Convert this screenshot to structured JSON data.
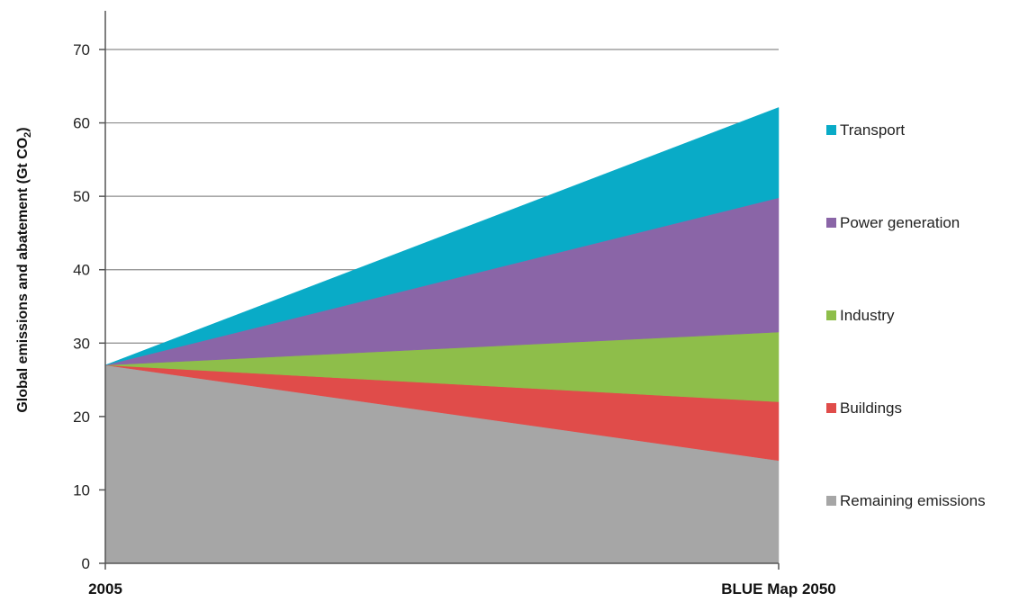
{
  "chart_data": {
    "type": "area",
    "stacked": true,
    "categories": [
      "2005",
      "BLUE Map 2050"
    ],
    "ylabel": "Global emissions and abatement (Gt CO",
    "ylabel_subscript": "2",
    "ylabel_suffix": ")",
    "ylim": [
      0,
      70
    ],
    "yticks": [
      "0",
      "10",
      "20",
      "30",
      "40",
      "50",
      "60",
      "70"
    ],
    "grid": true,
    "legend_position": "right",
    "series": [
      {
        "name": "Remaining emissions",
        "color": "#a6a6a6",
        "values": [
          27,
          14
        ]
      },
      {
        "name": "Buildings",
        "color": "#e04c4a",
        "values": [
          0,
          8
        ]
      },
      {
        "name": "Industry",
        "color": "#8ebe4a",
        "values": [
          0,
          9.5
        ]
      },
      {
        "name": "Power generation",
        "color": "#8a65a7",
        "values": [
          0,
          18.3
        ]
      },
      {
        "name": "Transport",
        "color": "#09abc7",
        "values": [
          0,
          12.3
        ]
      }
    ],
    "legend_order": [
      "Transport",
      "Power generation",
      "Industry",
      "Buildings",
      "Remaining emissions"
    ]
  }
}
